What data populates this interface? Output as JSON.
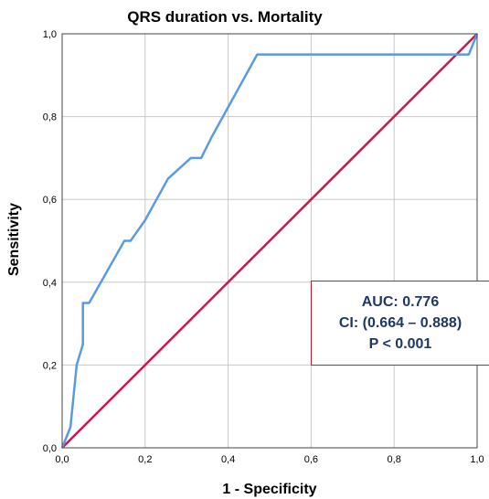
{
  "chart_data": {
    "type": "line",
    "title": "QRS duration vs. Mortality",
    "xlabel": "1 - Specificity",
    "ylabel": "Sensitivity",
    "xlim": [
      0,
      1
    ],
    "ylim": [
      0,
      1
    ],
    "xticks": [
      "0,0",
      "0,2",
      "0,4",
      "0,6",
      "0,8",
      "1,0"
    ],
    "yticks": [
      "0,0",
      "0,2",
      "0,4",
      "0,6",
      "0,8",
      "1,0"
    ],
    "grid": true,
    "series": [
      {
        "color": "#5a9be0",
        "x": [
          0.0,
          0.02,
          0.025,
          0.035,
          0.05,
          0.05,
          0.065,
          0.15,
          0.165,
          0.2,
          0.255,
          0.31,
          0.335,
          0.36,
          0.415,
          0.47,
          0.98,
          1.0
        ],
        "y": [
          0.0,
          0.05,
          0.1,
          0.2,
          0.25,
          0.35,
          0.35,
          0.5,
          0.5,
          0.55,
          0.65,
          0.7,
          0.7,
          0.75,
          0.85,
          0.95,
          0.95,
          1.0
        ]
      },
      {
        "color": "#d0154a",
        "x": [
          0,
          1
        ],
        "y": [
          0,
          1
        ]
      }
    ],
    "annotations": [
      "AUC: 0.776",
      "CI: (0.664 – 0.888)",
      "P < 0.001"
    ]
  }
}
